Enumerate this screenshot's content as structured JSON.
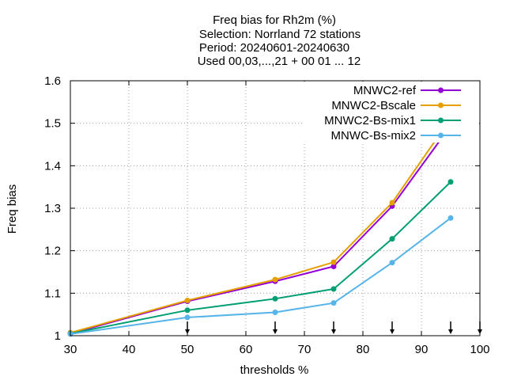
{
  "chart_data": {
    "type": "line",
    "title_lines": [
      "Freq bias  for Rh2m (%)",
      "Selection: Norrland     72 stations",
      "Period: 20240601-20240630",
      "Used 00,03,...,21 + 00 01 ... 12"
    ],
    "xlabel": "thresholds %",
    "ylabel": "Freq bias",
    "xlim": [
      30,
      100
    ],
    "ylim": [
      1,
      1.6
    ],
    "xticks": [
      30,
      40,
      50,
      60,
      70,
      80,
      90,
      100
    ],
    "yticks": [
      1,
      1.1,
      1.2,
      1.3,
      1.4,
      1.5,
      1.6
    ],
    "xtick_labels": [
      "30",
      "40",
      "50",
      "60",
      "70",
      "80",
      "90",
      "100"
    ],
    "ytick_labels": [
      "1",
      "1.1",
      "1.2",
      "1.3",
      "1.4",
      "1.5",
      "1.6"
    ],
    "grid": true,
    "legend_position": "top-right",
    "x": [
      30,
      50,
      65,
      75,
      85,
      95
    ],
    "series": [
      {
        "name": "MNWC2-ref",
        "color": "#9400d3",
        "values": [
          1.005,
          1.081,
          1.128,
          1.163,
          1.305,
          1.494
        ]
      },
      {
        "name": "MNWC2-Bscale",
        "color": "#e69f00",
        "values": [
          1.007,
          1.083,
          1.132,
          1.173,
          1.313,
          1.511
        ]
      },
      {
        "name": "MNWC2-Bs-mix1",
        "color": "#009e73",
        "values": [
          1.005,
          1.06,
          1.087,
          1.11,
          1.228,
          1.362
        ]
      },
      {
        "name": "MNWC-Bs-mix2",
        "color": "#56b4e9",
        "values": [
          1.004,
          1.043,
          1.055,
          1.077,
          1.172,
          1.277
        ]
      }
    ],
    "threshold_markers": [
      50,
      65,
      75,
      85,
      95,
      100
    ]
  }
}
